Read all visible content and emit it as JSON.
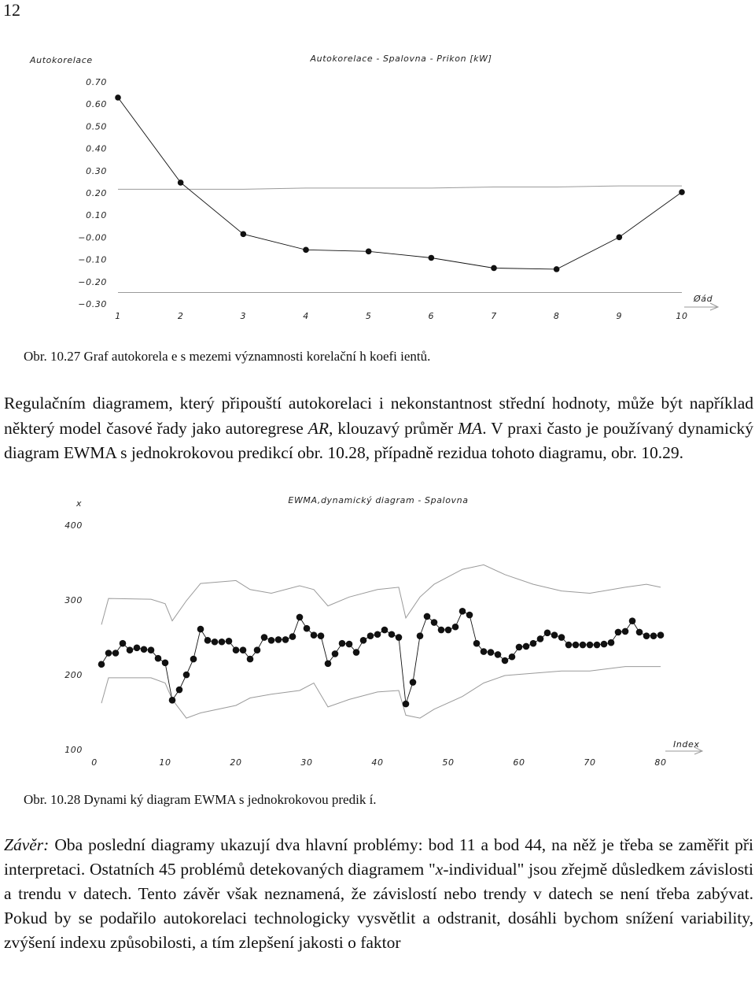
{
  "page_number": "12",
  "chart_data": [
    {
      "type": "line",
      "title": "Autokorelace - Spalovna - Prikon [kW]",
      "y_label": "Autokorelace",
      "x_label": "Øád",
      "x": [
        1,
        2,
        3,
        4,
        5,
        6,
        7,
        8,
        9,
        10
      ],
      "xlim": [
        1,
        10
      ],
      "xticks": [
        1,
        2,
        3,
        4,
        5,
        6,
        7,
        8,
        9,
        10
      ],
      "ylim": [
        -0.3,
        0.7
      ],
      "yticks": [
        {
          "value": 0.7,
          "label": "0.70"
        },
        {
          "value": 0.6,
          "label": "0.60"
        },
        {
          "value": 0.5,
          "label": "0.50"
        },
        {
          "value": 0.4,
          "label": "0.40"
        },
        {
          "value": 0.3,
          "label": "0.30"
        },
        {
          "value": 0.2,
          "label": "0.20"
        },
        {
          "value": 0.1,
          "label": "0.10"
        },
        {
          "value": 0,
          "label": "−0.00"
        },
        {
          "value": -0.1,
          "label": "−0.10"
        },
        {
          "value": -0.2,
          "label": "−0.20"
        },
        {
          "value": -0.3,
          "label": "−0.30"
        }
      ],
      "series": [
        {
          "color": "#9a9a9a",
          "markers": false,
          "values": [
            0.22,
            0.22,
            0.22,
            0.225,
            0.225,
            0.225,
            0.23,
            0.23,
            0.235,
            0.235
          ]
        },
        {
          "color": "#9a9a9a",
          "markers": false,
          "values": [
            -0.245,
            -0.245,
            -0.245,
            -0.245,
            -0.245,
            -0.245,
            -0.245,
            -0.245,
            -0.245,
            -0.245
          ]
        },
        {
          "color": "#111111",
          "markers": true,
          "values": [
            0.633,
            0.25,
            0.018,
            -0.053,
            -0.06,
            -0.089,
            -0.135,
            -0.14,
            0.004,
            0.207
          ]
        }
      ]
    },
    {
      "type": "line",
      "title": "EWMA,dynamický diagram - Spalovna",
      "y_label": "x",
      "x_label": "Index",
      "x": [
        1,
        2,
        3,
        4,
        5,
        6,
        7,
        8,
        9,
        10,
        11,
        12,
        13,
        14,
        15,
        16,
        17,
        18,
        19,
        20,
        21,
        22,
        23,
        24,
        25,
        26,
        27,
        28,
        29,
        30,
        31,
        32,
        33,
        34,
        35,
        36,
        37,
        38,
        39,
        40,
        41,
        42,
        43,
        44,
        45,
        46,
        47,
        48,
        49,
        50,
        51,
        52,
        53,
        54,
        55,
        56,
        57,
        58,
        59,
        60,
        61,
        62,
        63,
        64,
        65,
        66,
        67,
        68,
        69,
        70,
        71,
        72,
        73,
        74,
        75,
        76,
        77,
        78,
        79,
        80
      ],
      "xlim": [
        0,
        80
      ],
      "xticks": [
        0,
        10,
        20,
        30,
        40,
        50,
        60,
        70,
        80
      ],
      "ylim": [
        100,
        400
      ],
      "yticks": [
        100,
        200,
        300,
        400
      ],
      "series": [
        {
          "color": "#9a9a9a",
          "markers": false,
          "x": [
            1,
            2,
            8,
            10,
            11,
            13,
            15,
            20,
            22,
            25,
            29,
            31,
            33,
            36,
            40,
            43,
            44,
            46,
            48,
            52,
            55,
            58,
            62,
            66,
            70,
            75,
            78,
            80
          ],
          "values": [
            268,
            303,
            302,
            296,
            273,
            300,
            323,
            327,
            315,
            310,
            320,
            315,
            293,
            305,
            315,
            318,
            277,
            305,
            322,
            342,
            348,
            335,
            322,
            313,
            310,
            318,
            322,
            318
          ]
        },
        {
          "color": "#9a9a9a",
          "markers": false,
          "x": [
            1,
            2,
            8,
            10,
            11,
            13,
            15,
            20,
            22,
            25,
            29,
            31,
            33,
            36,
            40,
            43,
            44,
            46,
            48,
            52,
            55,
            58,
            62,
            66,
            70,
            75,
            78,
            80
          ],
          "values": [
            163,
            197,
            197,
            190,
            168,
            143,
            150,
            160,
            170,
            175,
            180,
            190,
            158,
            168,
            178,
            180,
            147,
            143,
            155,
            172,
            190,
            200,
            203,
            206,
            206,
            212,
            212,
            212
          ]
        },
        {
          "color": "#111111",
          "markers": true,
          "values": [
            215,
            230,
            230,
            243,
            234,
            237,
            235,
            234,
            223,
            217,
            167,
            181,
            201,
            222,
            262,
            247,
            245,
            245,
            246,
            234,
            234,
            222,
            234,
            251,
            247,
            248,
            248,
            252,
            278,
            263,
            254,
            253,
            216,
            229,
            243,
            242,
            231,
            247,
            253,
            255,
            261,
            255,
            251,
            162,
            191,
            253,
            279,
            271,
            261,
            261,
            265,
            286,
            281,
            243,
            232,
            231,
            228,
            220,
            225,
            238,
            239,
            243,
            249,
            257,
            254,
            251,
            241,
            241,
            241,
            241,
            241,
            242,
            244,
            258,
            259,
            273,
            258,
            253,
            253,
            254
          ]
        }
      ]
    }
  ],
  "figure_captions": [
    "Obr. 10.27 Graf autokorela e s mezemi významnosti korelační h koefi ientů.",
    "Obr. 10.28 Dynami ký diagram EWMA s jednokrokovou predik í."
  ],
  "paragraphs": [
    {
      "parts": [
        {
          "text": "Regulačním diagramem, který připouští autokorelaci i nekonstantnost střední hodnoty, může být například některý model časové řady jako autoregrese ",
          "italic": false
        },
        {
          "text": "AR",
          "italic": true
        },
        {
          "text": ", klouzavý průměr ",
          "italic": false
        },
        {
          "text": "MA",
          "italic": true
        },
        {
          "text": ". V praxi často je používaný dynamický diagram EWMA s jednokrokovou predikcí obr. 10.28, případně rezidua tohoto diagramu, obr. 10.29.",
          "italic": false
        }
      ]
    },
    {
      "parts": [
        {
          "text": "Závěr:",
          "italic": true
        },
        {
          "text": " Oba poslední diagramy ukazují dva hlavní problémy: bod 11 a bod 44, na něž je třeba se zaměřit při interpretaci. Ostatních 45 problémů detekovaných diagramem \"",
          "italic": false
        },
        {
          "text": "x",
          "italic": true
        },
        {
          "text": "-individual\" jsou zřejmě důsledkem závislosti a trendu v datech. Tento závěr však neznamená, že závislostí nebo trendy v datech se není třeba zabývat. Pokud by se podařilo autokorelaci technologicky vysvětlit a odstranit, dosáhli bychom snížení variability, zvýšení indexu způsobilosti, a tím zlepšení jakosti o faktor",
          "italic": false
        }
      ]
    }
  ]
}
